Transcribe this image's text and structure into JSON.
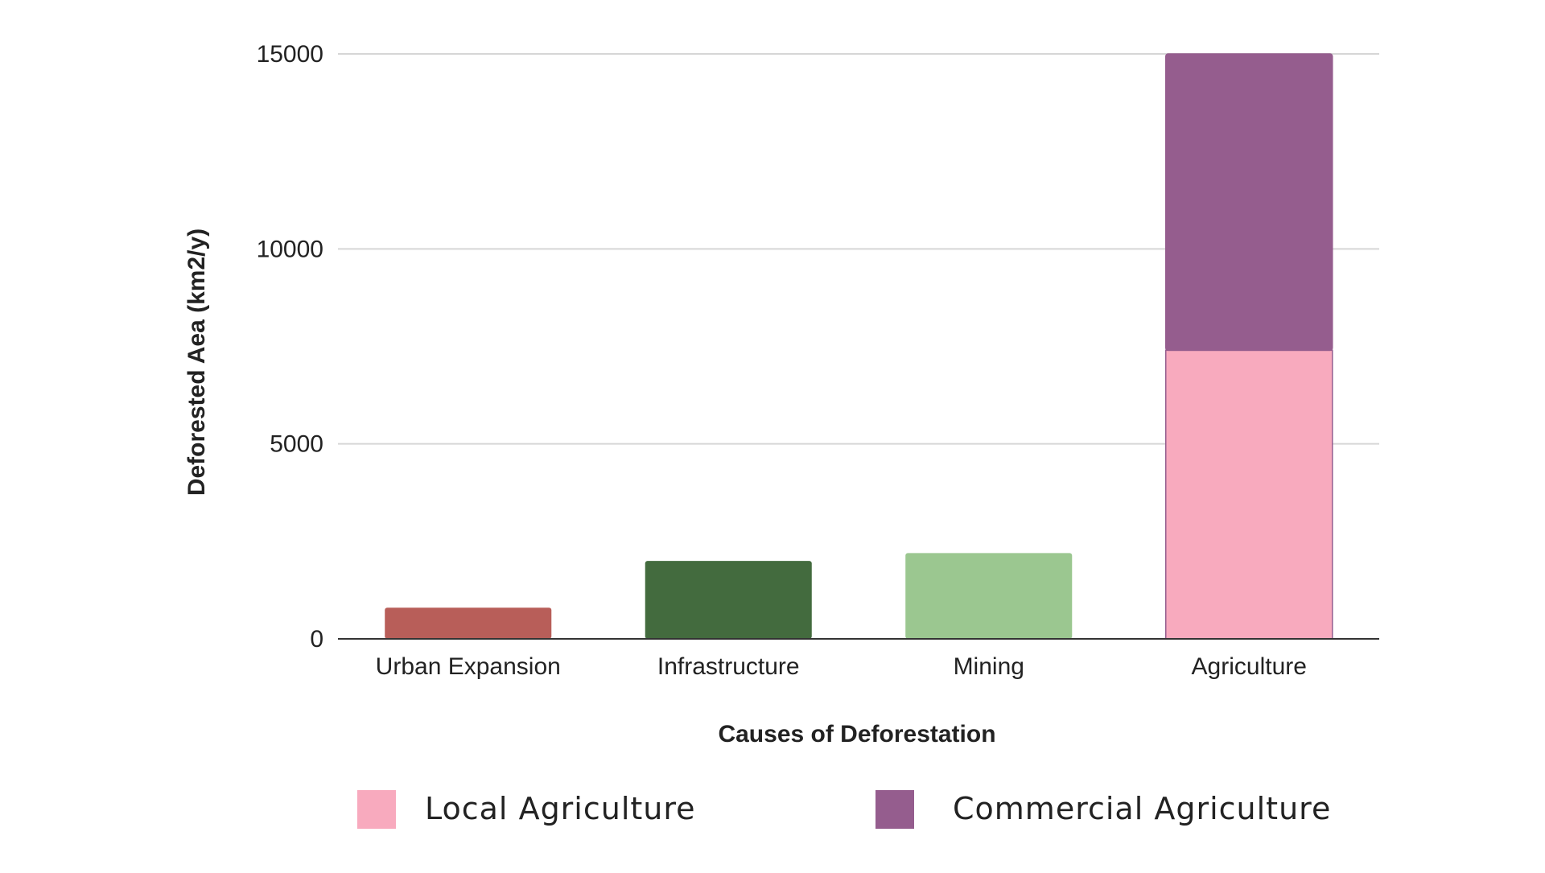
{
  "chart_data": {
    "type": "bar",
    "stacked": true,
    "categories": [
      "Urban Expansion",
      "Infrastructure",
      "Mining",
      "Agriculture"
    ],
    "bars": [
      {
        "category": "Urban Expansion",
        "value": 800,
        "color": "#b85e59"
      },
      {
        "category": "Infrastructure",
        "value": 2000,
        "color": "#436b3e"
      },
      {
        "category": "Mining",
        "value": 2200,
        "color": "#9bc790"
      },
      {
        "category": "Agriculture",
        "segments": [
          {
            "series": "Local Agriculture",
            "value": 7400,
            "color": "#f8aabe"
          },
          {
            "series": "Commercial Agriculture",
            "value": 7600,
            "color": "#955d8e"
          }
        ]
      }
    ],
    "series": [
      {
        "name": "Local Agriculture",
        "color": "#f8aabe"
      },
      {
        "name": "Commercial Agriculture",
        "color": "#955d8e"
      }
    ],
    "ylim": [
      0,
      15000
    ],
    "yticks": [
      "0",
      "5000",
      "10000",
      "15000"
    ],
    "xlabel": "Causes of Deforestation",
    "ylabel": "Deforested Aea (km2/y)",
    "grid": true,
    "legend_position": "bottom"
  }
}
